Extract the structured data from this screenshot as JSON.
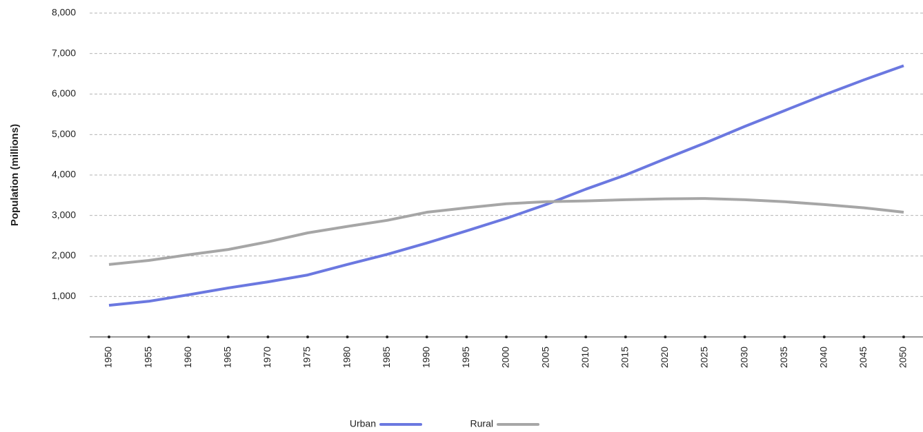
{
  "chart_data": {
    "type": "line",
    "y_label": "Population (millions)",
    "categories": [
      "1950",
      "1955",
      "1960",
      "1965",
      "1970",
      "1975",
      "1980",
      "1985",
      "1990",
      "1995",
      "2000",
      "2005",
      "2010",
      "2015",
      "2020",
      "2025",
      "2030",
      "2035",
      "2040",
      "2045",
      "2050"
    ],
    "series": [
      {
        "name": "Urban",
        "color": "#6b78e0",
        "values": [
          780,
          880,
          1040,
          1210,
          1360,
          1530,
          1790,
          2040,
          2320,
          2620,
          2930,
          3270,
          3650,
          4000,
          4400,
          4790,
          5200,
          5590,
          5980,
          6350,
          6700
        ]
      },
      {
        "name": "Rural",
        "color": "#a6a6a6",
        "values": [
          1790,
          1890,
          2030,
          2160,
          2350,
          2570,
          2730,
          2880,
          3080,
          3190,
          3290,
          3340,
          3360,
          3390,
          3410,
          3420,
          3390,
          3340,
          3270,
          3190,
          3080
        ]
      }
    ],
    "ylim": [
      0,
      8000
    ],
    "yticks": [
      {
        "value": 1000,
        "label": "1,000"
      },
      {
        "value": 2000,
        "label": "2,000"
      },
      {
        "value": 3000,
        "label": "3,000"
      },
      {
        "value": 4000,
        "label": "4,000"
      },
      {
        "value": 5000,
        "label": "5,000"
      },
      {
        "value": 6000,
        "label": "6,000"
      },
      {
        "value": 7000,
        "label": "7,000"
      },
      {
        "value": 8000,
        "label": "8,000"
      }
    ],
    "grid": true,
    "legend": "bottom"
  }
}
